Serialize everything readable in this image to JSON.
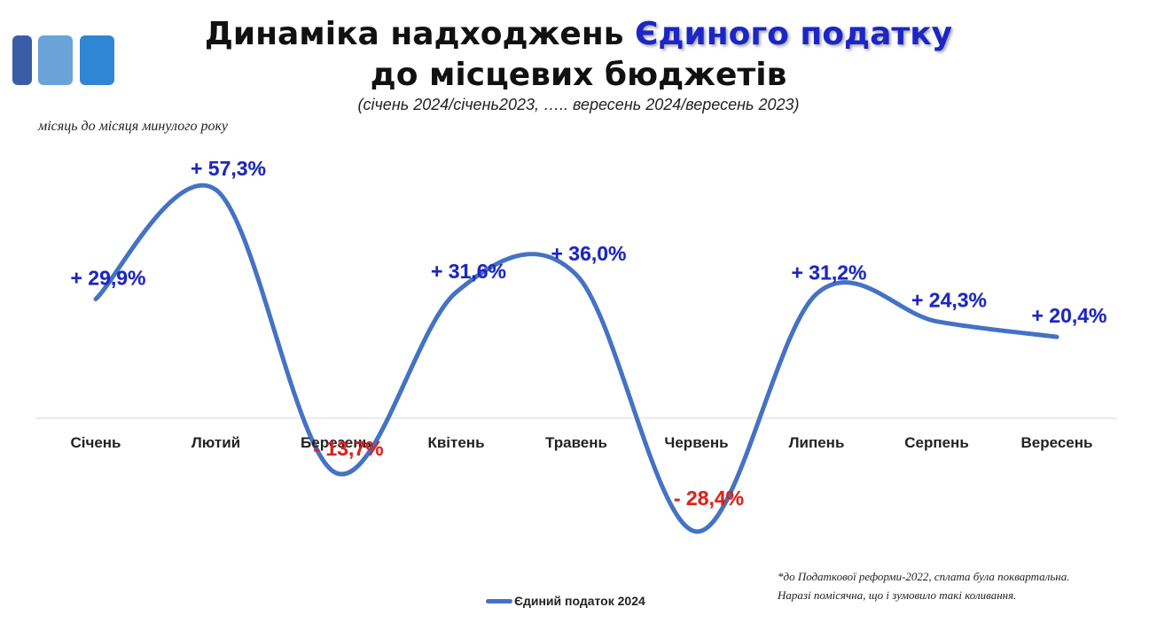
{
  "title": {
    "line1_prefix": "Динаміка надходжень ",
    "line1_highlight": "Єдиного податку",
    "line2": "до місцевих бюджетів"
  },
  "subtitle": "(січень 2024/січень2023, ….. вересень 2024/вересень 2023)",
  "note": "місяць до місяця минулого року",
  "footnote": {
    "line1": "*до Податкової реформи-2022, сплата була поквартальна.",
    "line2": "Наразі помісячна, що і зумовило такі коливання."
  },
  "colors": {
    "line": "#4472c4",
    "positive_label": "#1b26c4",
    "negative_label": "#e0201b",
    "deco": [
      "#3b5da8",
      "#6aa3d8",
      "#2f86d4"
    ]
  },
  "chart_data": {
    "type": "line",
    "categories": [
      "Січень",
      "Лютий",
      "Березень",
      "Квітень",
      "Травень",
      "Червень",
      "Липень",
      "Серпень",
      "Вересень"
    ],
    "series": [
      {
        "name": "Єдиний податок 2024",
        "values": [
          29.9,
          57.3,
          -13.7,
          31.6,
          36.0,
          -28.4,
          31.2,
          24.3,
          20.4
        ],
        "labels": [
          "+ 29,9%",
          "+ 57,3%",
          "- 13,7%",
          "+ 31,6%",
          "+ 36,0%",
          "- 28,4%",
          "+ 31,2%",
          "+ 24,3%",
          "+ 20,4%"
        ]
      }
    ],
    "smooth": true,
    "grid": false,
    "legend": "bottom"
  }
}
